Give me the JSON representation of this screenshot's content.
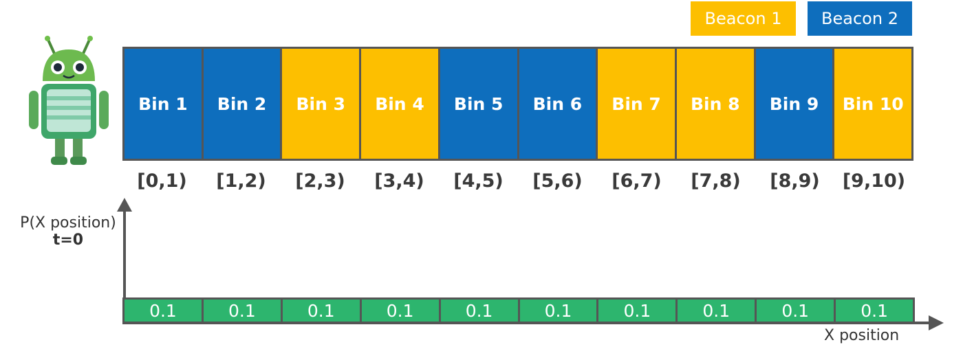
{
  "legend": [
    {
      "label": "Beacon 1",
      "color": "#FDBF00"
    },
    {
      "label": "Beacon 2",
      "color": "#0E6EBD"
    }
  ],
  "bins": [
    {
      "label": "Bin 1",
      "beacon": 2,
      "interval": "[0,1)",
      "probability": "0.1"
    },
    {
      "label": "Bin 2",
      "beacon": 2,
      "interval": "[1,2)",
      "probability": "0.1"
    },
    {
      "label": "Bin 3",
      "beacon": 1,
      "interval": "[2,3)",
      "probability": "0.1"
    },
    {
      "label": "Bin 4",
      "beacon": 1,
      "interval": "[3,4)",
      "probability": "0.1"
    },
    {
      "label": "Bin 5",
      "beacon": 2,
      "interval": "[4,5)",
      "probability": "0.1"
    },
    {
      "label": "Bin 6",
      "beacon": 2,
      "interval": "[5,6)",
      "probability": "0.1"
    },
    {
      "label": "Bin 7",
      "beacon": 1,
      "interval": "[6,7)",
      "probability": "0.1"
    },
    {
      "label": "Bin 8",
      "beacon": 1,
      "interval": "[7,8)",
      "probability": "0.1"
    },
    {
      "label": "Bin 9",
      "beacon": 2,
      "interval": "[8,9)",
      "probability": "0.1"
    },
    {
      "label": "Bin 10",
      "beacon": 1,
      "interval": "[9,10)",
      "probability": "0.1"
    }
  ],
  "axis": {
    "y_label": "P(X position)",
    "y_sub_label": "t=0",
    "x_label": "X position"
  },
  "colors": {
    "beacon1": "#FDBF00",
    "beacon2": "#0E6EBD",
    "probability_cell": "#2DB56E",
    "grid": "#555555"
  },
  "icons": {
    "robot": "android-robot-icon"
  }
}
